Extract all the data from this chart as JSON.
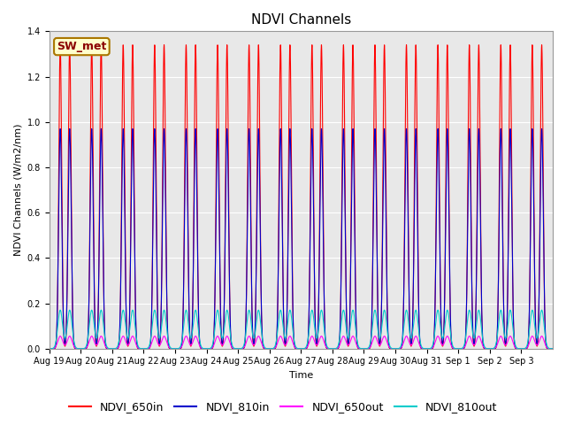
{
  "title": "NDVI Channels",
  "xlabel": "Time",
  "ylabel": "NDVI Channels (W/m2/nm)",
  "n_days": 16,
  "ylim": [
    0,
    1.4
  ],
  "yticks": [
    0.0,
    0.2,
    0.4,
    0.6,
    0.8,
    1.0,
    1.2,
    1.4
  ],
  "xtick_labels": [
    "Aug 19",
    "Aug 20",
    "Aug 21",
    "Aug 22",
    "Aug 23",
    "Aug 24",
    "Aug 25",
    "Aug 26",
    "Aug 27",
    "Aug 28",
    "Aug 29",
    "Aug 30",
    "Aug 31",
    "Sep 1",
    "Sep 2",
    "Sep 3"
  ],
  "series": {
    "NDVI_650in": {
      "color": "#ff0000",
      "peak": 1.34,
      "sigma": 0.045
    },
    "NDVI_810in": {
      "color": "#0000cc",
      "peak": 0.97,
      "sigma": 0.05
    },
    "NDVI_650out": {
      "color": "#ff00ff",
      "peak": 0.055,
      "sigma": 0.075
    },
    "NDVI_810out": {
      "color": "#00cccc",
      "peak": 0.17,
      "sigma": 0.075
    }
  },
  "peaks_per_day": 2,
  "peak_offsets": [
    0.35,
    0.65
  ],
  "legend_label": "SW_met",
  "legend_bg": "#ffffcc",
  "legend_edge": "#aa7700",
  "axes_bg": "#e8e8e8",
  "grid_color": "#ffffff",
  "fig_bg": "#ffffff",
  "title_fontsize": 11,
  "label_fontsize": 8,
  "tick_fontsize": 7,
  "legend_fontsize": 9,
  "linewidth": 0.8
}
